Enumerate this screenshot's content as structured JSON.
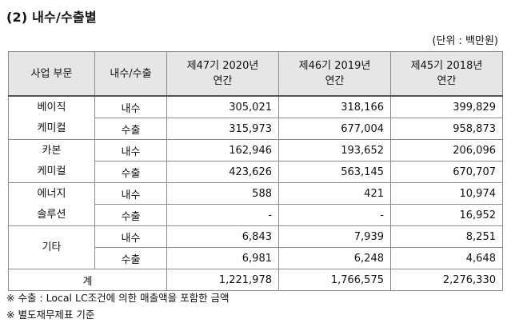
{
  "title": "(2) 내수/수출별",
  "unit": "(단위 : 백만원)",
  "headers": {
    "segment": "사업 부문",
    "type": "내수/수출",
    "col1_line1": "제47기 2020년",
    "col1_line2": "연간",
    "col2_line1": "제46기 2019년",
    "col2_line2": "연간",
    "col3_line1": "제45기 2018년",
    "col3_line2": "연간"
  },
  "groups": [
    {
      "name_line1": "베이직",
      "name_line2": "케미컬",
      "rows": [
        {
          "type": "내수",
          "v2020": "305,021",
          "v2019": "318,166",
          "v2018": "399,829"
        },
        {
          "type": "수출",
          "v2020": "315,973",
          "v2019": "677,004",
          "v2018": "958,873"
        }
      ]
    },
    {
      "name_line1": "카본",
      "name_line2": "케미컬",
      "rows": [
        {
          "type": "내수",
          "v2020": "162,946",
          "v2019": "193,652",
          "v2018": "206,096"
        },
        {
          "type": "수출",
          "v2020": "423,626",
          "v2019": "563,145",
          "v2018": "670,707"
        }
      ]
    },
    {
      "name_line1": "에너지",
      "name_line2": "솔루션",
      "rows": [
        {
          "type": "내수",
          "v2020": "588",
          "v2019": "421",
          "v2018": "10,974"
        },
        {
          "type": "수출",
          "v2020": "-",
          "v2019": "-",
          "v2018": "16,952"
        }
      ]
    },
    {
      "name_line1": "기타",
      "name_line2": "",
      "rows": [
        {
          "type": "내수",
          "v2020": "6,843",
          "v2019": "7,939",
          "v2018": "8,251"
        },
        {
          "type": "수출",
          "v2020": "6,981",
          "v2019": "6,248",
          "v2018": "4,648"
        }
      ]
    }
  ],
  "total": {
    "label": "계",
    "v2020": "1,221,978",
    "v2019": "1,766,575",
    "v2018": "2,276,330"
  },
  "notes": [
    "※ 수출 : Local LC조건에 의한 매출액을 포함한 금액",
    "※ 별도재무제표 기준"
  ]
}
